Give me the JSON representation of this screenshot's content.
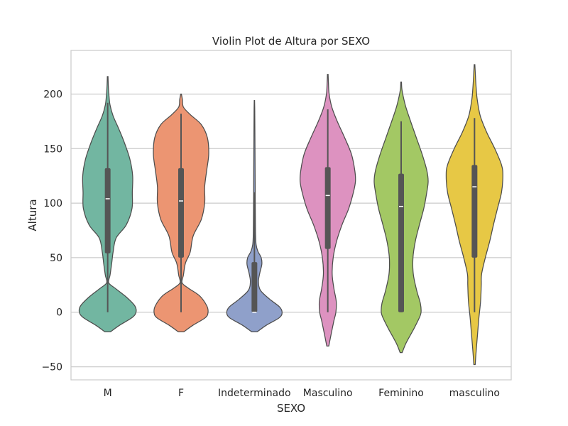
{
  "chart_data": {
    "type": "violin",
    "title": "Violin Plot de Altura por SEXO",
    "xlabel": "SEXO",
    "ylabel": "Altura",
    "ylim": [
      -62,
      240
    ],
    "yticks": [
      -50,
      0,
      50,
      100,
      150,
      200
    ],
    "grid": true,
    "colors": {
      "grid": "#cccccc",
      "frame": "#cccccc",
      "outline": "#4d4d4d",
      "box": "#555555",
      "median": "#ffffff"
    },
    "categories": [
      "M",
      "F",
      "Indeterminado",
      "Masculino",
      "Feminino",
      "masculino"
    ],
    "series": [
      {
        "color": "#72b6a1",
        "stats": {
          "min": 0,
          "q1": 54,
          "median": 104,
          "q3": 132,
          "max": 192
        },
        "range": [
          -18,
          216
        ],
        "density": [
          [
            -18,
            0.08
          ],
          [
            -12,
            0.35
          ],
          [
            -5,
            0.72
          ],
          [
            0,
            0.84
          ],
          [
            6,
            0.8
          ],
          [
            14,
            0.55
          ],
          [
            22,
            0.22
          ],
          [
            27,
            0.03
          ],
          [
            34,
            0.07
          ],
          [
            45,
            0.12
          ],
          [
            55,
            0.16
          ],
          [
            68,
            0.25
          ],
          [
            80,
            0.55
          ],
          [
            95,
            0.72
          ],
          [
            110,
            0.73
          ],
          [
            125,
            0.74
          ],
          [
            140,
            0.66
          ],
          [
            155,
            0.5
          ],
          [
            168,
            0.33
          ],
          [
            180,
            0.16
          ],
          [
            190,
            0.07
          ],
          [
            198,
            0.04
          ],
          [
            207,
            0.02
          ],
          [
            216,
            0.01
          ]
        ]
      },
      {
        "color": "#ec9572",
        "stats": {
          "min": 0,
          "q1": 50,
          "median": 102,
          "q3": 132,
          "max": 182
        },
        "range": [
          -18,
          200
        ],
        "density": [
          [
            -18,
            0.08
          ],
          [
            -12,
            0.35
          ],
          [
            -5,
            0.72
          ],
          [
            0,
            0.8
          ],
          [
            6,
            0.76
          ],
          [
            15,
            0.55
          ],
          [
            22,
            0.22
          ],
          [
            27,
            0.03
          ],
          [
            34,
            0.07
          ],
          [
            45,
            0.13
          ],
          [
            55,
            0.27
          ],
          [
            70,
            0.36
          ],
          [
            85,
            0.6
          ],
          [
            100,
            0.7
          ],
          [
            115,
            0.7
          ],
          [
            130,
            0.76
          ],
          [
            145,
            0.82
          ],
          [
            160,
            0.78
          ],
          [
            172,
            0.6
          ],
          [
            181,
            0.28
          ],
          [
            188,
            0.07
          ],
          [
            195,
            0.04
          ],
          [
            200,
            0.01
          ]
        ]
      },
      {
        "color": "#8fa0ca",
        "stats": {
          "min": 0,
          "q1": 0,
          "median": 0,
          "q3": 46,
          "max": 110
        },
        "range": [
          -18,
          194
        ],
        "density": [
          [
            -18,
            0.08
          ],
          [
            -12,
            0.35
          ],
          [
            -5,
            0.74
          ],
          [
            0,
            0.82
          ],
          [
            5,
            0.74
          ],
          [
            12,
            0.45
          ],
          [
            20,
            0.18
          ],
          [
            28,
            0.12
          ],
          [
            36,
            0.16
          ],
          [
            44,
            0.22
          ],
          [
            50,
            0.2
          ],
          [
            56,
            0.1
          ],
          [
            62,
            0.05
          ],
          [
            70,
            0.035
          ],
          [
            80,
            0.03
          ],
          [
            100,
            0.025
          ],
          [
            130,
            0.02
          ],
          [
            160,
            0.015
          ],
          [
            185,
            0.01
          ],
          [
            194,
            0.005
          ]
        ]
      },
      {
        "color": "#dd92c0",
        "stats": {
          "min": 0,
          "q1": 58,
          "median": 107,
          "q3": 133,
          "max": 186
        },
        "range": [
          -31,
          218
        ],
        "density": [
          [
            -31,
            0.03
          ],
          [
            -20,
            0.1
          ],
          [
            -8,
            0.18
          ],
          [
            0,
            0.24
          ],
          [
            10,
            0.25
          ],
          [
            22,
            0.18
          ],
          [
            35,
            0.13
          ],
          [
            50,
            0.16
          ],
          [
            65,
            0.26
          ],
          [
            80,
            0.42
          ],
          [
            95,
            0.62
          ],
          [
            110,
            0.76
          ],
          [
            120,
            0.82
          ],
          [
            130,
            0.8
          ],
          [
            145,
            0.7
          ],
          [
            160,
            0.5
          ],
          [
            175,
            0.28
          ],
          [
            188,
            0.12
          ],
          [
            200,
            0.04
          ],
          [
            210,
            0.02
          ],
          [
            218,
            0.01
          ]
        ]
      },
      {
        "color": "#a3c864",
        "stats": {
          "min": 0,
          "q1": 0,
          "median": 97,
          "q3": 127,
          "max": 175
        },
        "range": [
          -37,
          211
        ],
        "density": [
          [
            -37,
            0.03
          ],
          [
            -28,
            0.15
          ],
          [
            -15,
            0.38
          ],
          [
            -5,
            0.54
          ],
          [
            0,
            0.59
          ],
          [
            8,
            0.57
          ],
          [
            20,
            0.46
          ],
          [
            35,
            0.36
          ],
          [
            50,
            0.35
          ],
          [
            65,
            0.42
          ],
          [
            80,
            0.54
          ],
          [
            95,
            0.67
          ],
          [
            110,
            0.76
          ],
          [
            120,
            0.8
          ],
          [
            130,
            0.76
          ],
          [
            145,
            0.62
          ],
          [
            160,
            0.45
          ],
          [
            175,
            0.28
          ],
          [
            188,
            0.14
          ],
          [
            198,
            0.06
          ],
          [
            205,
            0.02
          ],
          [
            211,
            0.01
          ]
        ]
      },
      {
        "color": "#e7c845",
        "stats": {
          "min": 0,
          "q1": 50,
          "median": 115,
          "q3": 135,
          "max": 178
        },
        "range": [
          -48,
          227
        ],
        "density": [
          [
            -48,
            0.02
          ],
          [
            -35,
            0.05
          ],
          [
            -20,
            0.09
          ],
          [
            -5,
            0.13
          ],
          [
            10,
            0.18
          ],
          [
            25,
            0.2
          ],
          [
            35,
            0.21
          ],
          [
            50,
            0.32
          ],
          [
            65,
            0.45
          ],
          [
            80,
            0.56
          ],
          [
            95,
            0.68
          ],
          [
            110,
            0.8
          ],
          [
            125,
            0.84
          ],
          [
            135,
            0.8
          ],
          [
            150,
            0.6
          ],
          [
            165,
            0.36
          ],
          [
            180,
            0.17
          ],
          [
            195,
            0.08
          ],
          [
            205,
            0.05
          ],
          [
            215,
            0.03
          ],
          [
            227,
            0.01
          ]
        ]
      }
    ]
  }
}
